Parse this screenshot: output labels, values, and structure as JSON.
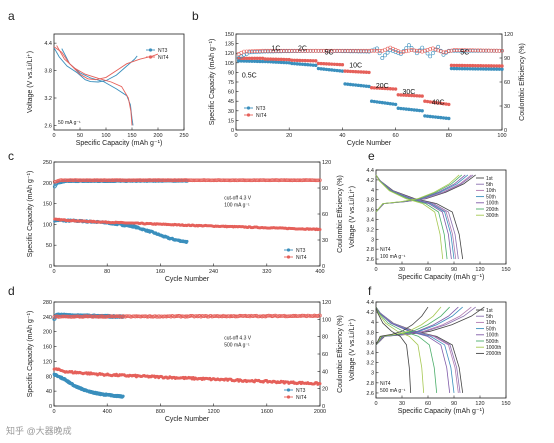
{
  "colors": {
    "blue": "#3a8fbd",
    "red": "#e5605a",
    "cycleColors": [
      "#444444",
      "#8a6fb0",
      "#b07ab0",
      "#3a8fbd",
      "#7f5aa8",
      "#4cae6a",
      "#a6c852"
    ]
  },
  "watermark": "知乎 @大器晚成",
  "chart_data": [
    {
      "id": "a",
      "panel_label": "a",
      "type": "line",
      "xlabel": "Specific Capacity (mAh g⁻¹)",
      "ylabel": "Voltage (V vs.Li/Li⁺)",
      "xlim": [
        0,
        250
      ],
      "ylim": [
        2.5,
        4.6
      ],
      "xticks": [
        0,
        50,
        100,
        150,
        200,
        250
      ],
      "yticks": [
        2.6,
        3.2,
        3.8,
        4.4
      ],
      "annotation": "50 mA g⁻¹",
      "legend": [
        "NT3",
        "NiT4"
      ],
      "series": [
        {
          "name": "NT3",
          "color": "blue",
          "points": [
            [
              0,
              4.3
            ],
            [
              10,
              4.1
            ],
            [
              25,
              3.9
            ],
            [
              45,
              3.75
            ],
            [
              60,
              3.6
            ],
            [
              70,
              3.56
            ],
            [
              85,
              3.55
            ],
            [
              100,
              3.58
            ],
            [
              120,
              3.7
            ],
            [
              140,
              3.9
            ],
            [
              155,
              4.05
            ],
            [
              160,
              4.12
            ]
          ]
        },
        {
          "name": "NT3",
          "color": "blue",
          "points": [
            [
              15,
              4.28
            ],
            [
              30,
              3.95
            ],
            [
              50,
              3.75
            ],
            [
              70,
              3.64
            ],
            [
              95,
              3.56
            ],
            [
              120,
              3.4
            ],
            [
              140,
              3.25
            ],
            [
              147,
              3.05
            ],
            [
              150,
              2.75
            ],
            [
              152,
              2.6
            ]
          ]
        },
        {
          "name": "NiT4",
          "color": "red",
          "points": [
            [
              0,
              4.32
            ],
            [
              15,
              4.2
            ],
            [
              30,
              3.95
            ],
            [
              50,
              3.72
            ],
            [
              65,
              3.62
            ],
            [
              80,
              3.6
            ],
            [
              100,
              3.65
            ],
            [
              120,
              3.8
            ],
            [
              140,
              3.95
            ],
            [
              165,
              4.05
            ],
            [
              190,
              4.12
            ],
            [
              200,
              4.16
            ]
          ]
        },
        {
          "name": "NiT4",
          "color": "red",
          "points": [
            [
              5,
              4.35
            ],
            [
              20,
              4.05
            ],
            [
              40,
              3.85
            ],
            [
              60,
              3.72
            ],
            [
              85,
              3.63
            ],
            [
              110,
              3.55
            ],
            [
              130,
              3.45
            ],
            [
              143,
              3.2
            ],
            [
              148,
              2.9
            ],
            [
              150,
              2.6
            ]
          ]
        }
      ]
    },
    {
      "id": "b",
      "panel_label": "b",
      "type": "scatter",
      "xlabel": "Cycle Number",
      "ylabel": "Specific Capacity (mAh g⁻¹)",
      "y2label": "Coulombic Efficiency (%)",
      "xlim": [
        0,
        100
      ],
      "ylim": [
        0,
        150
      ],
      "y2lim": [
        0,
        120
      ],
      "xticks": [
        0,
        20,
        40,
        60,
        80,
        100
      ],
      "yticks": [
        0,
        15,
        30,
        45,
        60,
        75,
        90,
        105,
        120,
        135,
        150
      ],
      "y2ticks": [
        0,
        30,
        60,
        90,
        120
      ],
      "legend": [
        "NT3",
        "NiT4"
      ],
      "rate_labels": [
        {
          "text": "0.5C",
          "x": 5,
          "y": 82
        },
        {
          "text": "1C",
          "x": 15,
          "y": 124
        },
        {
          "text": "2C",
          "x": 25,
          "y": 124
        },
        {
          "text": "5C",
          "x": 35,
          "y": 118
        },
        {
          "text": "10C",
          "x": 45,
          "y": 98
        },
        {
          "text": "20C",
          "x": 55,
          "y": 66
        },
        {
          "text": "30C",
          "x": 65,
          "y": 56
        },
        {
          "text": "40C",
          "x": 76,
          "y": 40
        },
        {
          "text": "5C",
          "x": 86,
          "y": 118
        }
      ],
      "capacity_segments": {
        "x_starts": [
          1,
          11,
          21,
          31,
          41,
          51,
          61,
          71,
          81
        ],
        "x_ends": [
          10,
          20,
          30,
          40,
          50,
          60,
          70,
          80,
          100
        ],
        "NT3": [
          [
            108,
            107
          ],
          [
            107,
            105
          ],
          [
            104,
            101
          ],
          [
            96,
            92
          ],
          [
            72,
            68
          ],
          [
            45,
            40
          ],
          [
            34,
            30
          ],
          [
            22,
            18
          ],
          [
            96,
            95
          ]
        ],
        "NiT4": [
          [
            112,
            112
          ],
          [
            111,
            110
          ],
          [
            109,
            108
          ],
          [
            104,
            102
          ],
          [
            92,
            90
          ],
          [
            66,
            64
          ],
          [
            55,
            53
          ],
          [
            45,
            40
          ],
          [
            101,
            100
          ]
        ]
      },
      "ce_series": [
        {
          "name": "NT3",
          "color": "blue",
          "points": [
            [
              1,
              90
            ],
            [
              2,
              92
            ],
            [
              3,
              94
            ],
            [
              4,
              95
            ],
            [
              5,
              97
            ],
            [
              10,
              98
            ],
            [
              30,
              99
            ],
            [
              50,
              98
            ],
            [
              53,
              102
            ],
            [
              55,
              90
            ],
            [
              58,
              100
            ],
            [
              62,
              95
            ],
            [
              65,
              106
            ],
            [
              68,
              96
            ],
            [
              70,
              103
            ],
            [
              73,
              92
            ],
            [
              76,
              104
            ],
            [
              78,
              94
            ],
            [
              80,
              99
            ],
            [
              85,
              99
            ],
            [
              100,
              99
            ]
          ]
        },
        {
          "name": "NiT4",
          "color": "red",
          "points": [
            [
              1,
              95
            ],
            [
              3,
              98
            ],
            [
              10,
              99
            ],
            [
              30,
              99
            ],
            [
              50,
              99
            ],
            [
              55,
              99
            ],
            [
              58,
              103
            ],
            [
              62,
              97
            ],
            [
              66,
              100
            ],
            [
              70,
              98
            ],
            [
              74,
              102
            ],
            [
              78,
              97
            ],
            [
              82,
              100
            ],
            [
              100,
              99
            ]
          ]
        }
      ]
    },
    {
      "id": "c",
      "panel_label": "c",
      "type": "scatter",
      "xlabel": "Cycle Number",
      "ylabel": "Specific Capacity (mAh g⁻¹)",
      "y2label": "Coulombic Efficiency (%)",
      "xlim": [
        0,
        400
      ],
      "ylim": [
        0,
        250
      ],
      "y2lim": [
        0,
        120
      ],
      "xticks": [
        0,
        80,
        160,
        240,
        320,
        400
      ],
      "yticks": [
        0,
        50,
        100,
        150,
        200,
        250
      ],
      "y2ticks": [
        0,
        30,
        60,
        90,
        120
      ],
      "annotations": [
        "cut-off 4.3 V",
        "100 mA g⁻¹"
      ],
      "legend": [
        "NT3",
        "NiT4"
      ],
      "series": [
        {
          "name": "NT3",
          "kind": "capacity",
          "color": "blue",
          "x_end": 200,
          "knots": [
            [
              1,
              110
            ],
            [
              40,
              108
            ],
            [
              80,
              104
            ],
            [
              120,
              95
            ],
            [
              150,
              80
            ],
            [
              170,
              68
            ],
            [
              185,
              62
            ],
            [
              200,
              58
            ]
          ],
          "noise": 4
        },
        {
          "name": "NiT4",
          "kind": "capacity",
          "color": "red",
          "x_end": 400,
          "knots": [
            [
              1,
              112
            ],
            [
              40,
              108
            ],
            [
              100,
              104
            ],
            [
              200,
              98
            ],
            [
              300,
              93
            ],
            [
              400,
              88
            ]
          ],
          "noise": 2
        },
        {
          "name": "NT3",
          "kind": "ce",
          "color": "blue",
          "x_end": 200,
          "knots": [
            [
              1,
              92
            ],
            [
              5,
              96
            ],
            [
              20,
              98
            ],
            [
              200,
              98.5
            ]
          ],
          "noise": 0.8
        },
        {
          "name": "NiT4",
          "kind": "ce",
          "color": "red",
          "x_end": 400,
          "knots": [
            [
              1,
              97
            ],
            [
              10,
              99
            ],
            [
              400,
              99
            ]
          ],
          "noise": 0.5
        }
      ]
    },
    {
      "id": "d",
      "panel_label": "d",
      "type": "scatter",
      "xlabel": "Cycle Number",
      "ylabel": "Specific Capacity (mAh g⁻¹)",
      "y2label": "Coulombic Efficiency (%)",
      "xlim": [
        0,
        2000
      ],
      "ylim": [
        0,
        280
      ],
      "y2lim": [
        0,
        120
      ],
      "xticks": [
        0,
        400,
        800,
        1200,
        1600,
        2000
      ],
      "yticks": [
        0,
        40,
        80,
        120,
        160,
        200,
        240,
        280
      ],
      "y2ticks": [
        0,
        20,
        40,
        60,
        80,
        100,
        120
      ],
      "annotations": [
        "cut-off 4.3 V",
        "500 mA g⁻¹"
      ],
      "legend": [
        "NT3",
        "NiT4"
      ],
      "series": [
        {
          "name": "NT3",
          "kind": "capacity",
          "color": "blue",
          "x_end": 520,
          "knots": [
            [
              1,
              85
            ],
            [
              80,
              72
            ],
            [
              150,
              55
            ],
            [
              250,
              40
            ],
            [
              350,
              32
            ],
            [
              450,
              28
            ],
            [
              520,
              25
            ]
          ],
          "noise": 4
        },
        {
          "name": "NiT4",
          "kind": "capacity",
          "color": "red",
          "x_end": 2000,
          "knots": [
            [
              1,
              100
            ],
            [
              100,
              92
            ],
            [
              400,
              84
            ],
            [
              800,
              78
            ],
            [
              1200,
              72
            ],
            [
              1600,
              66
            ],
            [
              2000,
              60
            ]
          ],
          "noise": 5
        },
        {
          "name": "NT3",
          "kind": "ce",
          "color": "blue",
          "x_end": 520,
          "knots": [
            [
              1,
              100
            ],
            [
              20,
              105
            ],
            [
              520,
              103
            ]
          ],
          "noise": 1.5
        },
        {
          "name": "NiT4",
          "kind": "ce",
          "color": "red",
          "x_end": 2000,
          "knots": [
            [
              1,
              103
            ],
            [
              2000,
              104
            ]
          ],
          "noise": 1.2
        }
      ]
    },
    {
      "id": "e",
      "panel_label": "e",
      "type": "line",
      "xlabel": "Specific Capacity (mAh g⁻¹)",
      "ylabel": "Voltage (V vs.Li/Li⁺)",
      "xlim": [
        0,
        150
      ],
      "ylim": [
        2.5,
        4.4
      ],
      "xticks": [
        0,
        30,
        60,
        90,
        120,
        150
      ],
      "yticks": [
        2.6,
        2.8,
        3.0,
        3.2,
        3.4,
        3.6,
        3.8,
        4.0,
        4.2,
        4.4
      ],
      "annotation": [
        "NiT4",
        "100 mA g⁻¹"
      ],
      "cycles": [
        "1st",
        "5th",
        "10th",
        "50th",
        "100th",
        "200th",
        "300th"
      ],
      "charge_end": [
        115,
        112,
        110,
        106,
        103,
        99,
        96
      ],
      "discharge_end": [
        100,
        95,
        92,
        90,
        87,
        82,
        77
      ]
    },
    {
      "id": "f",
      "panel_label": "f",
      "type": "line",
      "xlabel": "Specific Capacity (mAh g⁻¹)",
      "ylabel": "Voltage (V vs.Li/Li⁺)",
      "xlim": [
        0,
        150
      ],
      "ylim": [
        2.5,
        4.4
      ],
      "xticks": [
        0,
        30,
        60,
        90,
        120,
        150
      ],
      "yticks": [
        2.6,
        2.8,
        3.0,
        3.2,
        3.4,
        3.6,
        3.8,
        4.0,
        4.2,
        4.4
      ],
      "annotation": [
        "NiT4",
        "500 mA g⁻¹"
      ],
      "cycles": [
        "1st",
        "5th",
        "10th",
        "50th",
        "100th",
        "500th",
        "1000th",
        "2000th"
      ],
      "charge_end": [
        125,
        115,
        110,
        100,
        95,
        85,
        75,
        60
      ],
      "discharge_end": [
        100,
        97,
        95,
        90,
        85,
        70,
        55,
        40
      ]
    }
  ]
}
